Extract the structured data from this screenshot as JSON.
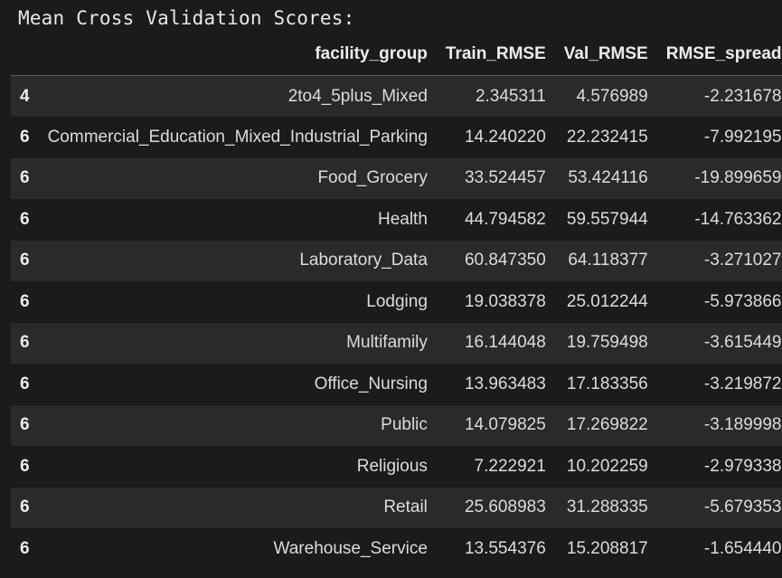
{
  "heading": "Mean Cross Validation Scores:",
  "table": {
    "columns": [
      "facility_group",
      "Train_RMSE",
      "Val_RMSE",
      "RMSE_spread"
    ],
    "rows": [
      {
        "index": "4",
        "facility_group": "2to4_5plus_Mixed",
        "train": "2.345311",
        "val": "4.576989",
        "spread": "-2.231678"
      },
      {
        "index": "6",
        "facility_group": "Commercial_Education_Mixed_Industrial_Parking",
        "train": "14.240220",
        "val": "22.232415",
        "spread": "-7.992195"
      },
      {
        "index": "6",
        "facility_group": "Food_Grocery",
        "train": "33.524457",
        "val": "53.424116",
        "spread": "-19.899659"
      },
      {
        "index": "6",
        "facility_group": "Health",
        "train": "44.794582",
        "val": "59.557944",
        "spread": "-14.763362"
      },
      {
        "index": "6",
        "facility_group": "Laboratory_Data",
        "train": "60.847350",
        "val": "64.118377",
        "spread": "-3.271027"
      },
      {
        "index": "6",
        "facility_group": "Lodging",
        "train": "19.038378",
        "val": "25.012244",
        "spread": "-5.973866"
      },
      {
        "index": "6",
        "facility_group": "Multifamily",
        "train": "16.144048",
        "val": "19.759498",
        "spread": "-3.615449"
      },
      {
        "index": "6",
        "facility_group": "Office_Nursing",
        "train": "13.963483",
        "val": "17.183356",
        "spread": "-3.219872"
      },
      {
        "index": "6",
        "facility_group": "Public",
        "train": "14.079825",
        "val": "17.269822",
        "spread": "-3.189998"
      },
      {
        "index": "6",
        "facility_group": "Religious",
        "train": "7.222921",
        "val": "10.202259",
        "spread": "-2.979338"
      },
      {
        "index": "6",
        "facility_group": "Retail",
        "train": "25.608983",
        "val": "31.288335",
        "spread": "-5.679353"
      },
      {
        "index": "6",
        "facility_group": "Warehouse_Service",
        "train": "13.554376",
        "val": "15.208817",
        "spread": "-1.654440"
      }
    ]
  }
}
